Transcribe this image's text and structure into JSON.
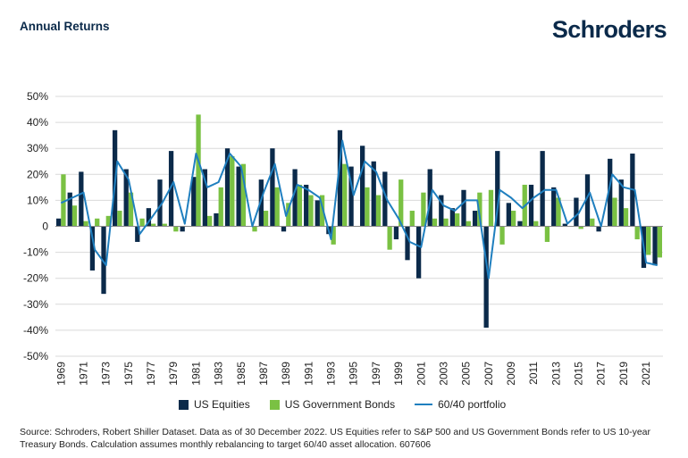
{
  "header": {
    "title": "Annual Returns",
    "brand": "Schroders"
  },
  "legend": {
    "equities": "US Equities",
    "bonds": "US Government Bonds",
    "portfolio": "60/40 portfolio"
  },
  "footer": {
    "source": "Source: Schroders, Robert Shiller Dataset. Data as of 30 December 2022. US Equities refer to S&P 500 and US Government Bonds refer to US 10-year Treasury Bonds. Calculation assumes monthly rebalancing to target 60/40 asset allocation. 607606"
  },
  "colors": {
    "equities": "#0b2a4a",
    "bonds": "#7ac143",
    "portfolio": "#1f7fbf",
    "grid": "#d9d9d9"
  },
  "chart_data": {
    "type": "bar",
    "ylim": [
      -50,
      50
    ],
    "yticks": [
      "-50%",
      "-40%",
      "-30%",
      "-20%",
      "-10%",
      "0",
      "10%",
      "20%",
      "30%",
      "40%",
      "50%"
    ],
    "grid": true,
    "legend_position": "bottom",
    "x_label_years": [
      "1969",
      "1971",
      "1973",
      "1975",
      "1977",
      "1979",
      "1981",
      "1983",
      "1985",
      "1987",
      "1989",
      "1991",
      "1993",
      "1995",
      "1997",
      "1999",
      "2001",
      "2003",
      "2005",
      "2007",
      "2009",
      "2011",
      "2013",
      "2015",
      "2017",
      "2019",
      "2021"
    ],
    "categories": [
      "1969",
      "1970",
      "1971",
      "1972",
      "1973",
      "1974",
      "1975",
      "1976",
      "1977",
      "1978",
      "1979",
      "1980",
      "1981",
      "1982",
      "1983",
      "1984",
      "1985",
      "1986",
      "1987",
      "1988",
      "1989",
      "1990",
      "1991",
      "1992",
      "1993",
      "1994",
      "1995",
      "1996",
      "1997",
      "1998",
      "1999",
      "2000",
      "2001",
      "2002",
      "2003",
      "2004",
      "2005",
      "2006",
      "2007",
      "2008",
      "2009",
      "2010",
      "2011",
      "2012",
      "2013",
      "2014",
      "2015",
      "2016",
      "2017",
      "2018",
      "2019",
      "2020",
      "2021",
      "2022"
    ],
    "series": [
      {
        "name": "US Equities",
        "kind": "bar",
        "values": [
          3,
          13,
          21,
          -17,
          -26,
          37,
          22,
          -6,
          7,
          18,
          29,
          -2,
          19,
          22,
          5,
          30,
          23,
          0,
          18,
          30,
          -2,
          22,
          16,
          10,
          -3,
          37,
          23,
          31,
          25,
          21,
          -5,
          -13,
          -20,
          22,
          12,
          7,
          14,
          6,
          -39,
          29,
          9,
          2,
          16,
          29,
          15,
          1,
          11,
          20,
          -2,
          26,
          18,
          28,
          -16,
          -15
        ]
      },
      {
        "name": "US Government Bonds",
        "kind": "bar",
        "values": [
          20,
          8,
          2,
          3,
          4,
          6,
          13,
          3,
          1,
          1,
          -2,
          0,
          43,
          4,
          15,
          27,
          24,
          -2,
          6,
          15,
          9,
          16,
          12,
          12,
          -7,
          24,
          0,
          15,
          12,
          -9,
          18,
          6,
          13,
          3,
          3,
          5,
          2,
          13,
          14,
          -7,
          6,
          16,
          2,
          -6,
          11,
          0,
          -1,
          3,
          0,
          11,
          7,
          -5,
          -11,
          -12
        ]
      },
      {
        "name": "60/40 portfolio",
        "kind": "line",
        "values": [
          9,
          11,
          13,
          -9,
          -15,
          25,
          18,
          -3,
          3,
          9,
          17,
          1,
          28,
          15,
          17,
          28,
          23,
          0,
          13,
          24,
          4,
          16,
          14,
          11,
          -5,
          33,
          12,
          25,
          21,
          10,
          3,
          -6,
          -8,
          14,
          8,
          6,
          10,
          10,
          -20,
          14,
          11,
          7,
          11,
          14,
          14,
          1,
          5,
          13,
          0,
          20,
          15,
          14,
          -14,
          -15
        ]
      }
    ]
  }
}
